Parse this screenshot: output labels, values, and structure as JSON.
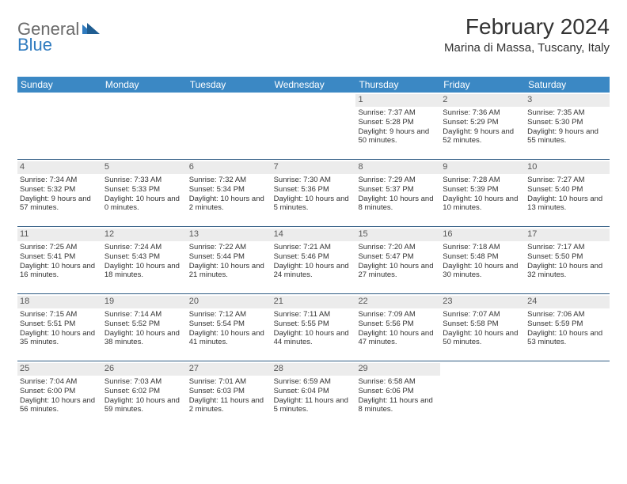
{
  "logo": {
    "text1": "General",
    "text2": "Blue",
    "shape_color": "#2f7bbf",
    "text1_color": "#6a6a6a"
  },
  "title": "February 2024",
  "location": "Marina di Massa, Tuscany, Italy",
  "colors": {
    "header_bg": "#3b88c4",
    "header_text": "#ffffff",
    "daynum_bg": "#ececec",
    "daynum_text": "#575757",
    "divider": "#2d5a82",
    "body_text": "#333333"
  },
  "dow": [
    "Sunday",
    "Monday",
    "Tuesday",
    "Wednesday",
    "Thursday",
    "Friday",
    "Saturday"
  ],
  "weeks": [
    [
      {
        "empty": true
      },
      {
        "empty": true
      },
      {
        "empty": true
      },
      {
        "empty": true
      },
      {
        "day": "1",
        "sunrise": "Sunrise: 7:37 AM",
        "sunset": "Sunset: 5:28 PM",
        "daylight": "Daylight: 9 hours and 50 minutes."
      },
      {
        "day": "2",
        "sunrise": "Sunrise: 7:36 AM",
        "sunset": "Sunset: 5:29 PM",
        "daylight": "Daylight: 9 hours and 52 minutes."
      },
      {
        "day": "3",
        "sunrise": "Sunrise: 7:35 AM",
        "sunset": "Sunset: 5:30 PM",
        "daylight": "Daylight: 9 hours and 55 minutes."
      }
    ],
    [
      {
        "day": "4",
        "sunrise": "Sunrise: 7:34 AM",
        "sunset": "Sunset: 5:32 PM",
        "daylight": "Daylight: 9 hours and 57 minutes."
      },
      {
        "day": "5",
        "sunrise": "Sunrise: 7:33 AM",
        "sunset": "Sunset: 5:33 PM",
        "daylight": "Daylight: 10 hours and 0 minutes."
      },
      {
        "day": "6",
        "sunrise": "Sunrise: 7:32 AM",
        "sunset": "Sunset: 5:34 PM",
        "daylight": "Daylight: 10 hours and 2 minutes."
      },
      {
        "day": "7",
        "sunrise": "Sunrise: 7:30 AM",
        "sunset": "Sunset: 5:36 PM",
        "daylight": "Daylight: 10 hours and 5 minutes."
      },
      {
        "day": "8",
        "sunrise": "Sunrise: 7:29 AM",
        "sunset": "Sunset: 5:37 PM",
        "daylight": "Daylight: 10 hours and 8 minutes."
      },
      {
        "day": "9",
        "sunrise": "Sunrise: 7:28 AM",
        "sunset": "Sunset: 5:39 PM",
        "daylight": "Daylight: 10 hours and 10 minutes."
      },
      {
        "day": "10",
        "sunrise": "Sunrise: 7:27 AM",
        "sunset": "Sunset: 5:40 PM",
        "daylight": "Daylight: 10 hours and 13 minutes."
      }
    ],
    [
      {
        "day": "11",
        "sunrise": "Sunrise: 7:25 AM",
        "sunset": "Sunset: 5:41 PM",
        "daylight": "Daylight: 10 hours and 16 minutes."
      },
      {
        "day": "12",
        "sunrise": "Sunrise: 7:24 AM",
        "sunset": "Sunset: 5:43 PM",
        "daylight": "Daylight: 10 hours and 18 minutes."
      },
      {
        "day": "13",
        "sunrise": "Sunrise: 7:22 AM",
        "sunset": "Sunset: 5:44 PM",
        "daylight": "Daylight: 10 hours and 21 minutes."
      },
      {
        "day": "14",
        "sunrise": "Sunrise: 7:21 AM",
        "sunset": "Sunset: 5:46 PM",
        "daylight": "Daylight: 10 hours and 24 minutes."
      },
      {
        "day": "15",
        "sunrise": "Sunrise: 7:20 AM",
        "sunset": "Sunset: 5:47 PM",
        "daylight": "Daylight: 10 hours and 27 minutes."
      },
      {
        "day": "16",
        "sunrise": "Sunrise: 7:18 AM",
        "sunset": "Sunset: 5:48 PM",
        "daylight": "Daylight: 10 hours and 30 minutes."
      },
      {
        "day": "17",
        "sunrise": "Sunrise: 7:17 AM",
        "sunset": "Sunset: 5:50 PM",
        "daylight": "Daylight: 10 hours and 32 minutes."
      }
    ],
    [
      {
        "day": "18",
        "sunrise": "Sunrise: 7:15 AM",
        "sunset": "Sunset: 5:51 PM",
        "daylight": "Daylight: 10 hours and 35 minutes."
      },
      {
        "day": "19",
        "sunrise": "Sunrise: 7:14 AM",
        "sunset": "Sunset: 5:52 PM",
        "daylight": "Daylight: 10 hours and 38 minutes."
      },
      {
        "day": "20",
        "sunrise": "Sunrise: 7:12 AM",
        "sunset": "Sunset: 5:54 PM",
        "daylight": "Daylight: 10 hours and 41 minutes."
      },
      {
        "day": "21",
        "sunrise": "Sunrise: 7:11 AM",
        "sunset": "Sunset: 5:55 PM",
        "daylight": "Daylight: 10 hours and 44 minutes."
      },
      {
        "day": "22",
        "sunrise": "Sunrise: 7:09 AM",
        "sunset": "Sunset: 5:56 PM",
        "daylight": "Daylight: 10 hours and 47 minutes."
      },
      {
        "day": "23",
        "sunrise": "Sunrise: 7:07 AM",
        "sunset": "Sunset: 5:58 PM",
        "daylight": "Daylight: 10 hours and 50 minutes."
      },
      {
        "day": "24",
        "sunrise": "Sunrise: 7:06 AM",
        "sunset": "Sunset: 5:59 PM",
        "daylight": "Daylight: 10 hours and 53 minutes."
      }
    ],
    [
      {
        "day": "25",
        "sunrise": "Sunrise: 7:04 AM",
        "sunset": "Sunset: 6:00 PM",
        "daylight": "Daylight: 10 hours and 56 minutes."
      },
      {
        "day": "26",
        "sunrise": "Sunrise: 7:03 AM",
        "sunset": "Sunset: 6:02 PM",
        "daylight": "Daylight: 10 hours and 59 minutes."
      },
      {
        "day": "27",
        "sunrise": "Sunrise: 7:01 AM",
        "sunset": "Sunset: 6:03 PM",
        "daylight": "Daylight: 11 hours and 2 minutes."
      },
      {
        "day": "28",
        "sunrise": "Sunrise: 6:59 AM",
        "sunset": "Sunset: 6:04 PM",
        "daylight": "Daylight: 11 hours and 5 minutes."
      },
      {
        "day": "29",
        "sunrise": "Sunrise: 6:58 AM",
        "sunset": "Sunset: 6:06 PM",
        "daylight": "Daylight: 11 hours and 8 minutes."
      },
      {
        "empty": true
      },
      {
        "empty": true
      }
    ]
  ]
}
